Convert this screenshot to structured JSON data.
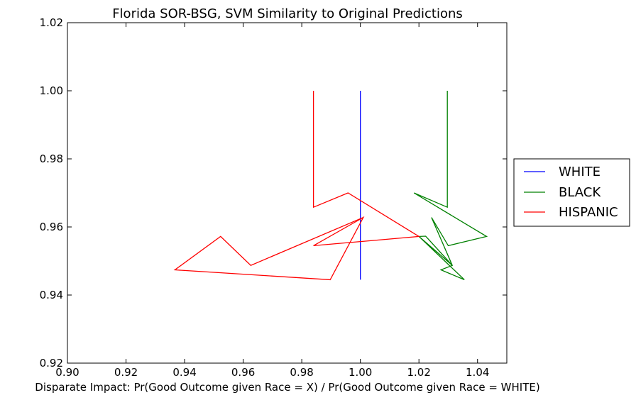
{
  "chart_data": {
    "type": "line",
    "title": "Florida SOR-BSG, SVM Similarity to Original Predictions",
    "xlabel": "Disparate Impact: Pr(Good Outcome given Race = X) / Pr(Good Outcome given Race = WHITE)",
    "ylabel": "",
    "xlim": [
      0.9,
      1.05
    ],
    "ylim": [
      0.92,
      1.02
    ],
    "xticks": [
      "0.90",
      "0.92",
      "0.94",
      "0.96",
      "0.98",
      "1.00",
      "1.02",
      "1.04"
    ],
    "yticks": [
      "0.92",
      "0.94",
      "0.96",
      "0.98",
      "1.00",
      "1.02"
    ],
    "grid": false,
    "legend_position": "outside-right",
    "series": [
      {
        "name": "WHITE",
        "color": "#0000ff",
        "x": [
          1.0,
          1.0,
          1.0,
          1.0,
          1.0,
          1.0,
          1.0,
          1.0,
          1.0,
          1.0,
          1.0,
          1.0,
          1.0
        ],
        "y": [
          1.0,
          0.9658,
          0.97,
          0.9628,
          0.9545,
          0.9572,
          0.9487,
          0.9545,
          0.9474,
          0.9573,
          0.9445,
          0.9545,
          0.9572
        ]
      },
      {
        "name": "BLACK",
        "color": "#008000",
        "x": [
          1.0297,
          1.0297,
          1.0183,
          1.0431,
          1.03,
          1.0243,
          1.0314,
          1.02,
          1.0223,
          1.0314,
          1.0275,
          1.0355,
          1.02
        ],
        "y": [
          1.0,
          0.9658,
          0.97,
          0.9572,
          0.9545,
          0.9628,
          0.9487,
          0.9572,
          0.9573,
          0.9487,
          0.9474,
          0.9445,
          0.9572
        ]
      },
      {
        "name": "HISPANIC",
        "color": "#ff0000",
        "x": [
          0.984,
          0.984,
          0.9958,
          1.02,
          0.984,
          1.001,
          0.9897,
          0.9367,
          0.9523,
          0.9626,
          1.001,
          0.984,
          1.02
        ],
        "y": [
          1.0,
          0.9658,
          0.97,
          0.9572,
          0.9545,
          0.9628,
          0.9445,
          0.9474,
          0.9572,
          0.9487,
          0.9628,
          0.9545,
          0.9572
        ]
      }
    ]
  }
}
